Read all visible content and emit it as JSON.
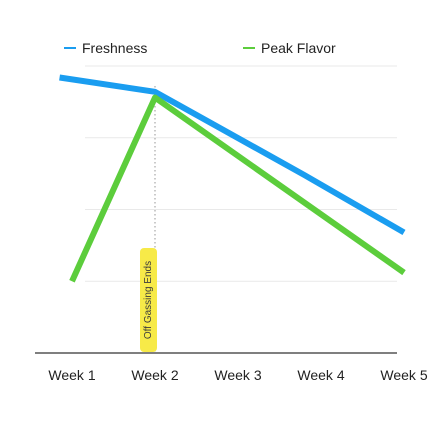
{
  "chart_data": {
    "type": "line",
    "title": "",
    "xlabel": "",
    "ylabel": "",
    "categories": [
      "Week 1",
      "Week 2",
      "Week 3",
      "Week 4",
      "Week 5"
    ],
    "ylim": [
      0,
      100
    ],
    "grid": true,
    "legend_position": "top",
    "series": [
      {
        "name": "Freshness",
        "color": "#1a9df0",
        "points": [
          {
            "x": 0.85,
            "y": 96
          },
          {
            "x": 2.0,
            "y": 91
          },
          {
            "x": 3.8,
            "y": 62
          },
          {
            "x": 5.0,
            "y": 42
          }
        ]
      },
      {
        "name": "Peak Flavor",
        "color": "#5ccd3c",
        "points": [
          {
            "x": 1.0,
            "y": 25
          },
          {
            "x": 2.0,
            "y": 89
          },
          {
            "x": 5.0,
            "y": 28
          }
        ]
      }
    ],
    "annotation": {
      "text": "Off Gassing Ends",
      "x": 2.0,
      "background": "#f7ea48",
      "text_color": "#3b3b3b"
    },
    "gridline_color": "#e9e9e9",
    "axis_color": "#555555",
    "marker_line_color": "#a8a8a8"
  }
}
